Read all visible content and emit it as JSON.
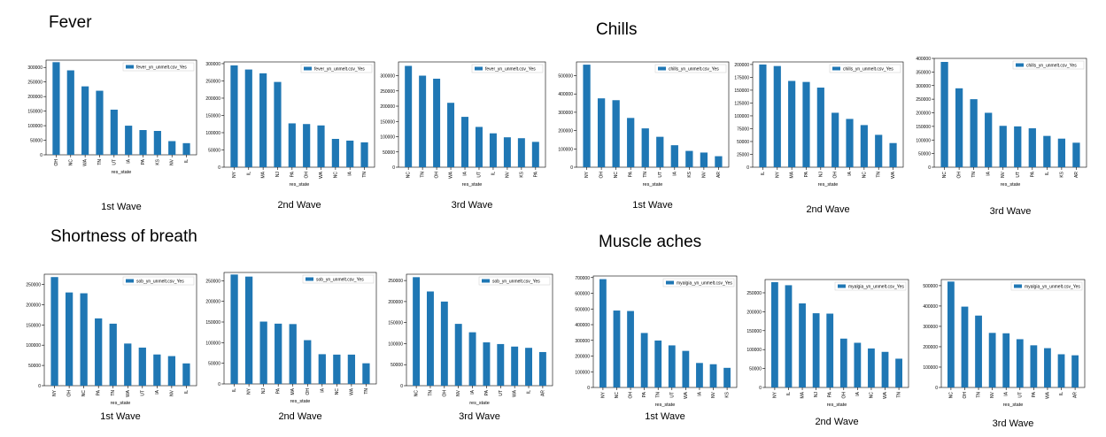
{
  "sections": [
    {
      "title": "Fever"
    },
    {
      "title": "Chills"
    },
    {
      "title": "Shortness of breath"
    },
    {
      "title": "Muscle aches"
    }
  ],
  "waves": [
    "1st Wave",
    "2nd Wave",
    "3rd Wave",
    "1st Wave",
    "2nd Wave",
    "3rd Wave",
    "1st Wave",
    "2nd Wave",
    "3rd Wave",
    "1st Wave",
    "2nd Wave",
    "3rd Wave"
  ],
  "colors": {
    "bar": "#1f77b4",
    "axis": "#000000"
  },
  "chart_data": [
    {
      "type": "bar",
      "legend": "fever_yn_unmelt.csv_Yes",
      "legend_position": "top-right",
      "xlabel": "res_state",
      "ylabel": "",
      "categories": [
        "OH",
        "NC",
        "WA",
        "TN",
        "UT",
        "IA",
        "PA",
        "KS",
        "NV",
        "IL"
      ],
      "values": [
        318000,
        290000,
        235000,
        220000,
        155000,
        100000,
        85000,
        82000,
        47000,
        40000
      ],
      "ylim": [
        0,
        325000
      ],
      "yticks": [
        0,
        50000,
        100000,
        150000,
        200000,
        250000,
        300000
      ]
    },
    {
      "type": "bar",
      "legend": "fever_yn_unmelt.csv_Yes",
      "legend_position": "top-right",
      "xlabel": "res_state",
      "ylabel": "",
      "categories": [
        "NY",
        "IL",
        "MA",
        "NJ",
        "PA",
        "OH",
        "WA",
        "NC",
        "IA",
        "TN"
      ],
      "values": [
        295000,
        283000,
        272000,
        247000,
        127000,
        125000,
        121000,
        82000,
        77000,
        72000
      ],
      "ylim": [
        0,
        305000
      ],
      "yticks": [
        0,
        50000,
        100000,
        150000,
        200000,
        250000,
        300000
      ]
    },
    {
      "type": "bar",
      "legend": "fever_yn_unmelt.csv_Yes",
      "legend_position": "top-right",
      "xlabel": "res_state",
      "ylabel": "",
      "categories": [
        "NC",
        "TN",
        "OH",
        "WA",
        "IA",
        "UT",
        "IL",
        "NV",
        "KS",
        "PA"
      ],
      "values": [
        332000,
        300000,
        290000,
        211000,
        165000,
        132000,
        111000,
        98000,
        95000,
        83000
      ],
      "ylim": [
        0,
        345000
      ],
      "yticks": [
        0,
        50000,
        100000,
        150000,
        200000,
        250000,
        300000
      ]
    },
    {
      "type": "bar",
      "legend": "chills_yn_unmelt.csv_Yes",
      "legend_position": "top-right",
      "xlabel": "res_state",
      "ylabel": "",
      "categories": [
        "NY",
        "OH",
        "NC",
        "PA",
        "TN",
        "UT",
        "IA",
        "KS",
        "NV",
        "AR"
      ],
      "values": [
        560000,
        376000,
        366000,
        269000,
        212000,
        166000,
        120000,
        89000,
        80000,
        60000
      ],
      "ylim": [
        0,
        575000
      ],
      "yticks": [
        0,
        100000,
        200000,
        300000,
        400000,
        500000
      ]
    },
    {
      "type": "bar",
      "legend": "chills_yn_unmelt.csv_Yes",
      "legend_position": "top-right",
      "xlabel": "res_state",
      "ylabel": "",
      "categories": [
        "IL",
        "NY",
        "MA",
        "PA",
        "NJ",
        "OH",
        "IA",
        "NC",
        "TN",
        "WA"
      ],
      "values": [
        200000,
        197000,
        168000,
        166000,
        155000,
        106000,
        94000,
        82000,
        63000,
        47000
      ],
      "ylim": [
        0,
        205000
      ],
      "yticks": [
        0,
        25000,
        50000,
        75000,
        100000,
        125000,
        150000,
        175000,
        200000
      ]
    },
    {
      "type": "bar",
      "legend": "chills_yn_unmelt.csv_Yes",
      "legend_position": "top-right",
      "xlabel": "res_state",
      "ylabel": "",
      "categories": [
        "NC",
        "OH",
        "TN",
        "IA",
        "NV",
        "UT",
        "PA",
        "IL",
        "KS",
        "AR"
      ],
      "values": [
        387000,
        290000,
        250000,
        200000,
        152000,
        150000,
        143000,
        115000,
        105000,
        90000
      ],
      "ylim": [
        0,
        400000
      ],
      "yticks": [
        0,
        50000,
        100000,
        150000,
        200000,
        250000,
        300000,
        350000,
        400000
      ]
    },
    {
      "type": "bar",
      "legend": "sob_yn_unmelt.csv_Yes",
      "legend_position": "top-right",
      "xlabel": "res_state",
      "ylabel": "",
      "categories": [
        "NY",
        "OH",
        "NC",
        "PA",
        "TN",
        "WA",
        "UT",
        "IA",
        "NV",
        "IL"
      ],
      "values": [
        268000,
        230000,
        228000,
        166000,
        153000,
        104000,
        94000,
        77000,
        73000,
        55000
      ],
      "ylim": [
        0,
        275000
      ],
      "yticks": [
        0,
        50000,
        100000,
        150000,
        200000,
        250000
      ]
    },
    {
      "type": "bar",
      "legend": "sob_yn_unmelt.csv_Yes",
      "legend_position": "top-right",
      "xlabel": "res_state",
      "ylabel": "",
      "categories": [
        "IL",
        "NY",
        "NJ",
        "PA",
        "MA",
        "OH",
        "IA",
        "NC",
        "WA",
        "TN"
      ],
      "values": [
        265000,
        260000,
        151000,
        146000,
        145000,
        106000,
        72000,
        71000,
        71000,
        50000
      ],
      "ylim": [
        0,
        270000
      ],
      "yticks": [
        0,
        50000,
        100000,
        150000,
        200000,
        250000
      ]
    },
    {
      "type": "bar",
      "legend": "sob_yn_unmelt.csv_Yes",
      "legend_position": "top-right",
      "xlabel": "res_state",
      "ylabel": "",
      "categories": [
        "NC",
        "TN",
        "OH",
        "NV",
        "IA",
        "PA",
        "UT",
        "WA",
        "IL",
        "AR"
      ],
      "values": [
        258000,
        224000,
        200000,
        147000,
        127000,
        103000,
        99000,
        93000,
        90000,
        80000
      ],
      "ylim": [
        0,
        265000
      ],
      "yticks": [
        0,
        50000,
        100000,
        150000,
        200000,
        250000
      ]
    },
    {
      "type": "bar",
      "legend": "myalgia_yn_unmelt.csv_Yes",
      "legend_position": "top-right",
      "xlabel": "res_state",
      "ylabel": "",
      "categories": [
        "NY",
        "NC",
        "OH",
        "PA",
        "TN",
        "UT",
        "WA",
        "IA",
        "NV",
        "KS"
      ],
      "values": [
        690000,
        490000,
        487000,
        347000,
        299000,
        268000,
        233000,
        156000,
        148000,
        125000
      ],
      "ylim": [
        0,
        710000
      ],
      "yticks": [
        0,
        100000,
        200000,
        300000,
        400000,
        500000,
        600000,
        700000
      ]
    },
    {
      "type": "bar",
      "legend": "myalgia_yn_unmelt.csv_Yes",
      "legend_position": "top-right",
      "xlabel": "res_state",
      "ylabel": "",
      "categories": [
        "NY",
        "IL",
        "MA",
        "NJ",
        "PA",
        "OH",
        "IA",
        "NC",
        "WA",
        "TN"
      ],
      "values": [
        278000,
        270000,
        222000,
        196000,
        195000,
        129000,
        118000,
        103000,
        94000,
        76000
      ],
      "ylim": [
        0,
        285000
      ],
      "yticks": [
        0,
        50000,
        100000,
        150000,
        200000,
        250000
      ]
    },
    {
      "type": "bar",
      "legend": "myalgia_yn_unmelt.csv_Yes",
      "legend_position": "top-right",
      "xlabel": "res_state",
      "ylabel": "",
      "categories": [
        "NC",
        "OH",
        "TN",
        "NV",
        "IA",
        "UT",
        "PA",
        "WA",
        "IL",
        "AR"
      ],
      "values": [
        520000,
        397000,
        353000,
        268000,
        266000,
        237000,
        207000,
        193000,
        163000,
        158000
      ],
      "ylim": [
        0,
        530000
      ],
      "yticks": [
        0,
        100000,
        200000,
        300000,
        400000,
        500000
      ]
    }
  ]
}
